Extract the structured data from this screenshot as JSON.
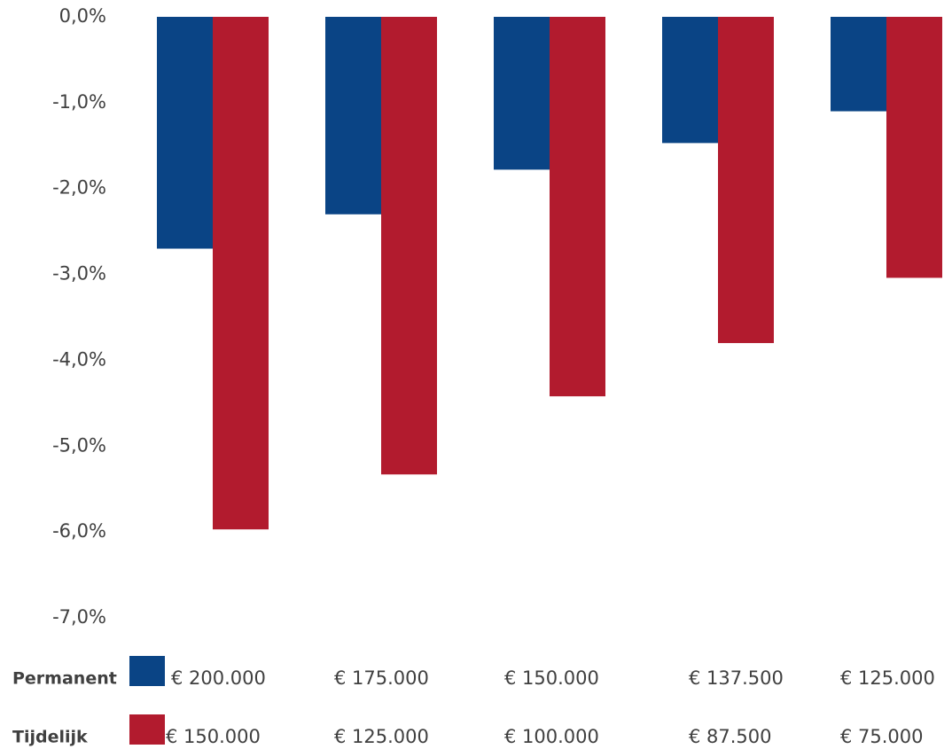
{
  "chart_data": {
    "type": "bar",
    "ylim": [
      -7,
      0
    ],
    "yticks": [
      {
        "value": 0,
        "label": "0,0%"
      },
      {
        "value": -1,
        "label": "-1,0%"
      },
      {
        "value": -2,
        "label": "-2,0%"
      },
      {
        "value": -3,
        "label": "-3,0%"
      },
      {
        "value": -4,
        "label": "-4,0%"
      },
      {
        "value": -5,
        "label": "-5,0%"
      },
      {
        "value": -6,
        "label": "-6,0%"
      },
      {
        "value": -7,
        "label": "-7,0%"
      }
    ],
    "grid": false,
    "series": [
      {
        "name": "Permanent",
        "color": "#0a4485",
        "labels": [
          "€ 200.000",
          "€ 175.000",
          "€ 150.000",
          "€ 137.500",
          "€ 125.000"
        ],
        "values": [
          -2.7,
          -2.3,
          -1.78,
          -1.47,
          -1.1
        ]
      },
      {
        "name": "Tijdelijk",
        "color": "#b21b2e",
        "labels": [
          "€ 150.000",
          "€ 125.000",
          "€ 100.000",
          "€ 87.500",
          "€ 75.000"
        ],
        "values": [
          -5.97,
          -5.33,
          -4.42,
          -3.8,
          -3.04
        ]
      }
    ]
  }
}
